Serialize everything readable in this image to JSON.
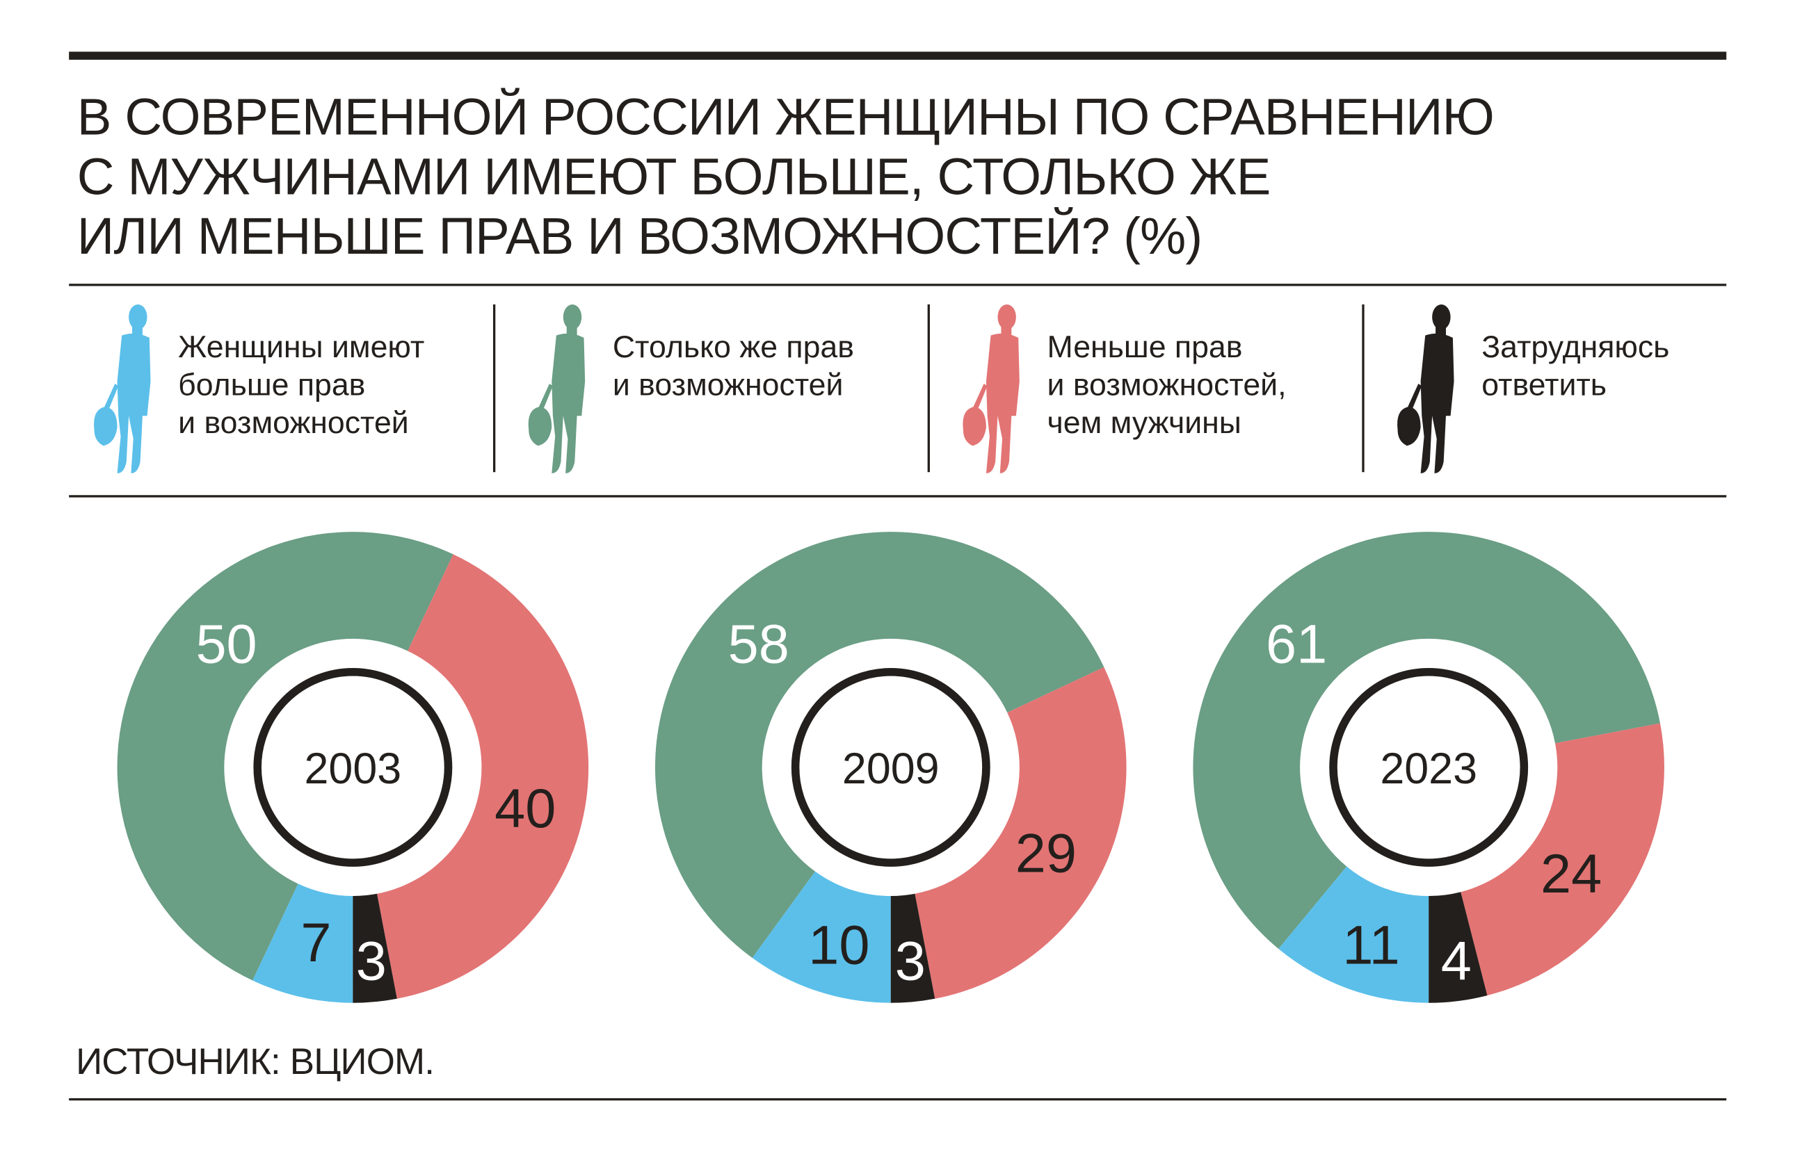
{
  "title_lines": [
    "В СОВРЕМЕННОЙ РОССИИ ЖЕНЩИНЫ ПО СРАВНЕНИЮ",
    "С МУЖЧИНАМИ ИМЕЮТ БОЛЬШЕ, СТОЛЬКО ЖЕ",
    "ИЛИ МЕНЬШЕ ПРАВ И ВОЗМОЖНОСТЕЙ? (%)"
  ],
  "legend": [
    {
      "lines": [
        "Женщины имеют",
        "больше прав",
        "и возможностей"
      ],
      "color": "#5bbfea",
      "icon": "woman-silhouette-icon"
    },
    {
      "lines": [
        "Столько же прав",
        "и возможностей"
      ],
      "color": "#6a9e85",
      "icon": "woman-silhouette-icon"
    },
    {
      "lines": [
        "Меньше прав",
        "и возможностей,",
        "чем мужчины"
      ],
      "color": "#e37474",
      "icon": "woman-silhouette-icon"
    },
    {
      "lines": [
        "Затрудняюсь",
        "ответить"
      ],
      "color": "#231f1c",
      "icon": "woman-silhouette-icon"
    }
  ],
  "source": "ИСТОЧНИК: ВЦИОМ.",
  "chart_data": [
    {
      "type": "pie",
      "title": "2003",
      "categories": [
        "Женщины имеют больше прав и возможностей",
        "Столько же прав и возможностей",
        "Меньше прав и возможностей, чем мужчины",
        "Затрудняюсь ответить"
      ],
      "values": [
        7,
        50,
        40,
        3
      ],
      "labels": [
        "7",
        "50",
        "40",
        "3"
      ]
    },
    {
      "type": "pie",
      "title": "2009",
      "categories": [
        "Женщины имеют больше прав и возможностей",
        "Столько же прав и возможностей",
        "Меньше прав и возможностей, чем мужчины",
        "Затрудняюсь ответить"
      ],
      "values": [
        10,
        58,
        29,
        3
      ],
      "labels": [
        "10",
        "58",
        "29",
        "3"
      ]
    },
    {
      "type": "pie",
      "title": "2023",
      "categories": [
        "Женщины имеют больше прав и возможностей",
        "Столько же прав и возможностей",
        "Меньше прав и возможностей, чем мужчины",
        "Затрудняюсь ответить"
      ],
      "values": [
        11,
        61,
        24,
        4
      ],
      "labels": [
        "11",
        "61",
        "24",
        "4"
      ]
    }
  ]
}
